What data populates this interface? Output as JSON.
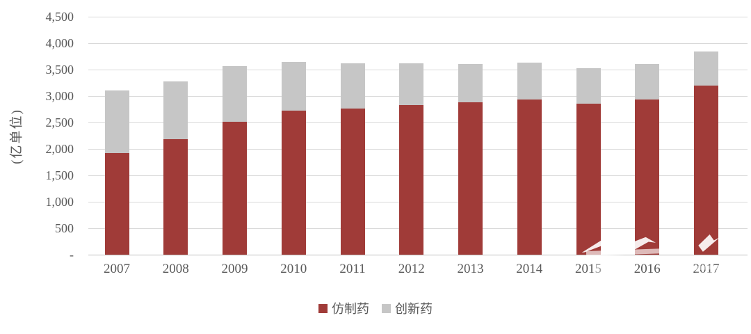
{
  "chart_data": {
    "type": "bar",
    "stacked": true,
    "title": "",
    "ylabel": "(亿单位)",
    "xlabel": "",
    "categories": [
      "2007",
      "2008",
      "2009",
      "2010",
      "2011",
      "2012",
      "2013",
      "2014",
      "2015",
      "2016",
      "2017"
    ],
    "series": [
      {
        "name": "仿制药",
        "color": "#A03B38",
        "values": [
          1920,
          2180,
          2510,
          2730,
          2760,
          2830,
          2880,
          2930,
          2860,
          2930,
          3200
        ]
      },
      {
        "name": "创新药",
        "color": "#C6C6C6",
        "values": [
          1180,
          1090,
          1050,
          920,
          860,
          790,
          720,
          700,
          670,
          680,
          640
        ]
      }
    ],
    "totals": [
      3100,
      3270,
      3560,
      3650,
      3620,
      3620,
      3600,
      3630,
      3530,
      3610,
      3840
    ],
    "ylim": [
      0,
      4500
    ],
    "y_tick_step": 500,
    "y_tick_labels": [
      "-",
      "500",
      "1,000",
      "1,500",
      "2,000",
      "2,500",
      "3,000",
      "3,500",
      "4,000",
      "4,500"
    ],
    "grid": true,
    "legend_position": "bottom"
  },
  "colors": {
    "bar_generic": "#A03B38",
    "bar_innovative": "#C6C6C6",
    "gridline": "#D9D9D9",
    "axis_line": "#BDBDBD",
    "text": "#595959",
    "background": "#FFFFFF",
    "watermark": "#FFFFFF"
  }
}
